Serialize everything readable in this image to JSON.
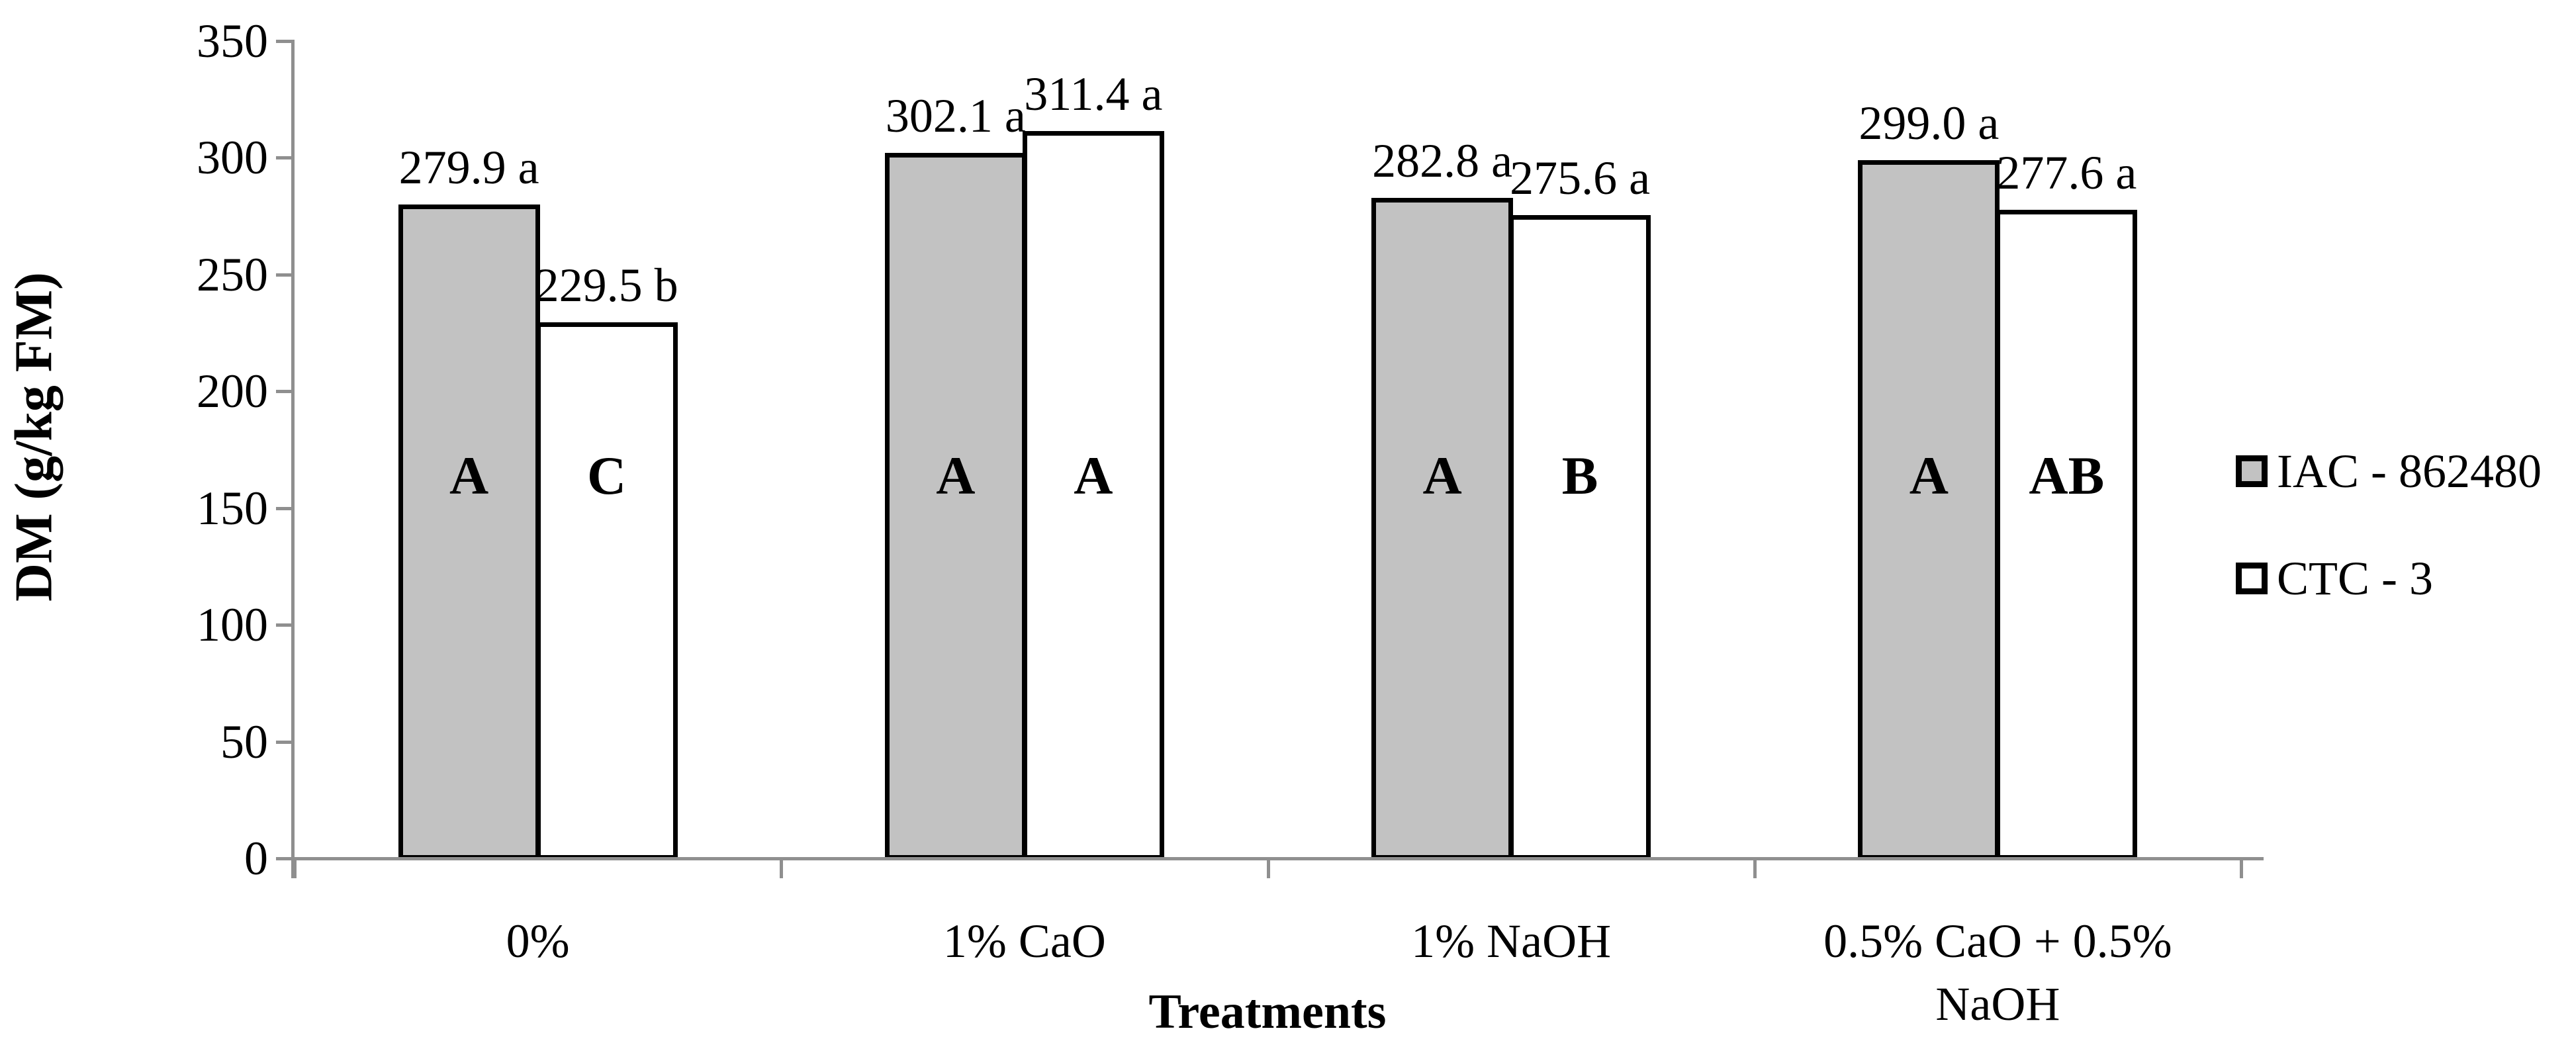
{
  "chart_data": {
    "type": "bar",
    "title": "",
    "xlabel": "Treatments",
    "ylabel": "DM (g/kg FM)",
    "ylim": [
      0,
      350
    ],
    "ytick_step": 50,
    "yticks": [
      0,
      50,
      100,
      150,
      200,
      250,
      300,
      350
    ],
    "grid": false,
    "legend_position": "right",
    "categories": [
      "0%",
      "1% CaO",
      "1% NaOH",
      "0.5% CaO + 0.5% NaOH"
    ],
    "series": [
      {
        "name": "IAC - 862480",
        "fill": "#c2c2c2",
        "values": [
          279.9,
          302.1,
          282.8,
          299.0
        ],
        "value_labels": [
          "279.9 a",
          "302.1 a",
          "282.8 a",
          "299.0 a"
        ],
        "letters": [
          "A",
          "A",
          "A",
          "A"
        ]
      },
      {
        "name": "CTC - 3",
        "fill": "#ffffff",
        "values": [
          229.5,
          311.4,
          275.6,
          277.6
        ],
        "value_labels": [
          "229.5 b",
          "311.4 a",
          "275.6 a",
          "277.6 a"
        ],
        "letters": [
          "C",
          "A",
          "B",
          "AB"
        ]
      }
    ]
  },
  "colors": {
    "axis": "#8f8f8f",
    "bar_border": "#000000",
    "text": "#000000",
    "background": "#ffffff"
  }
}
